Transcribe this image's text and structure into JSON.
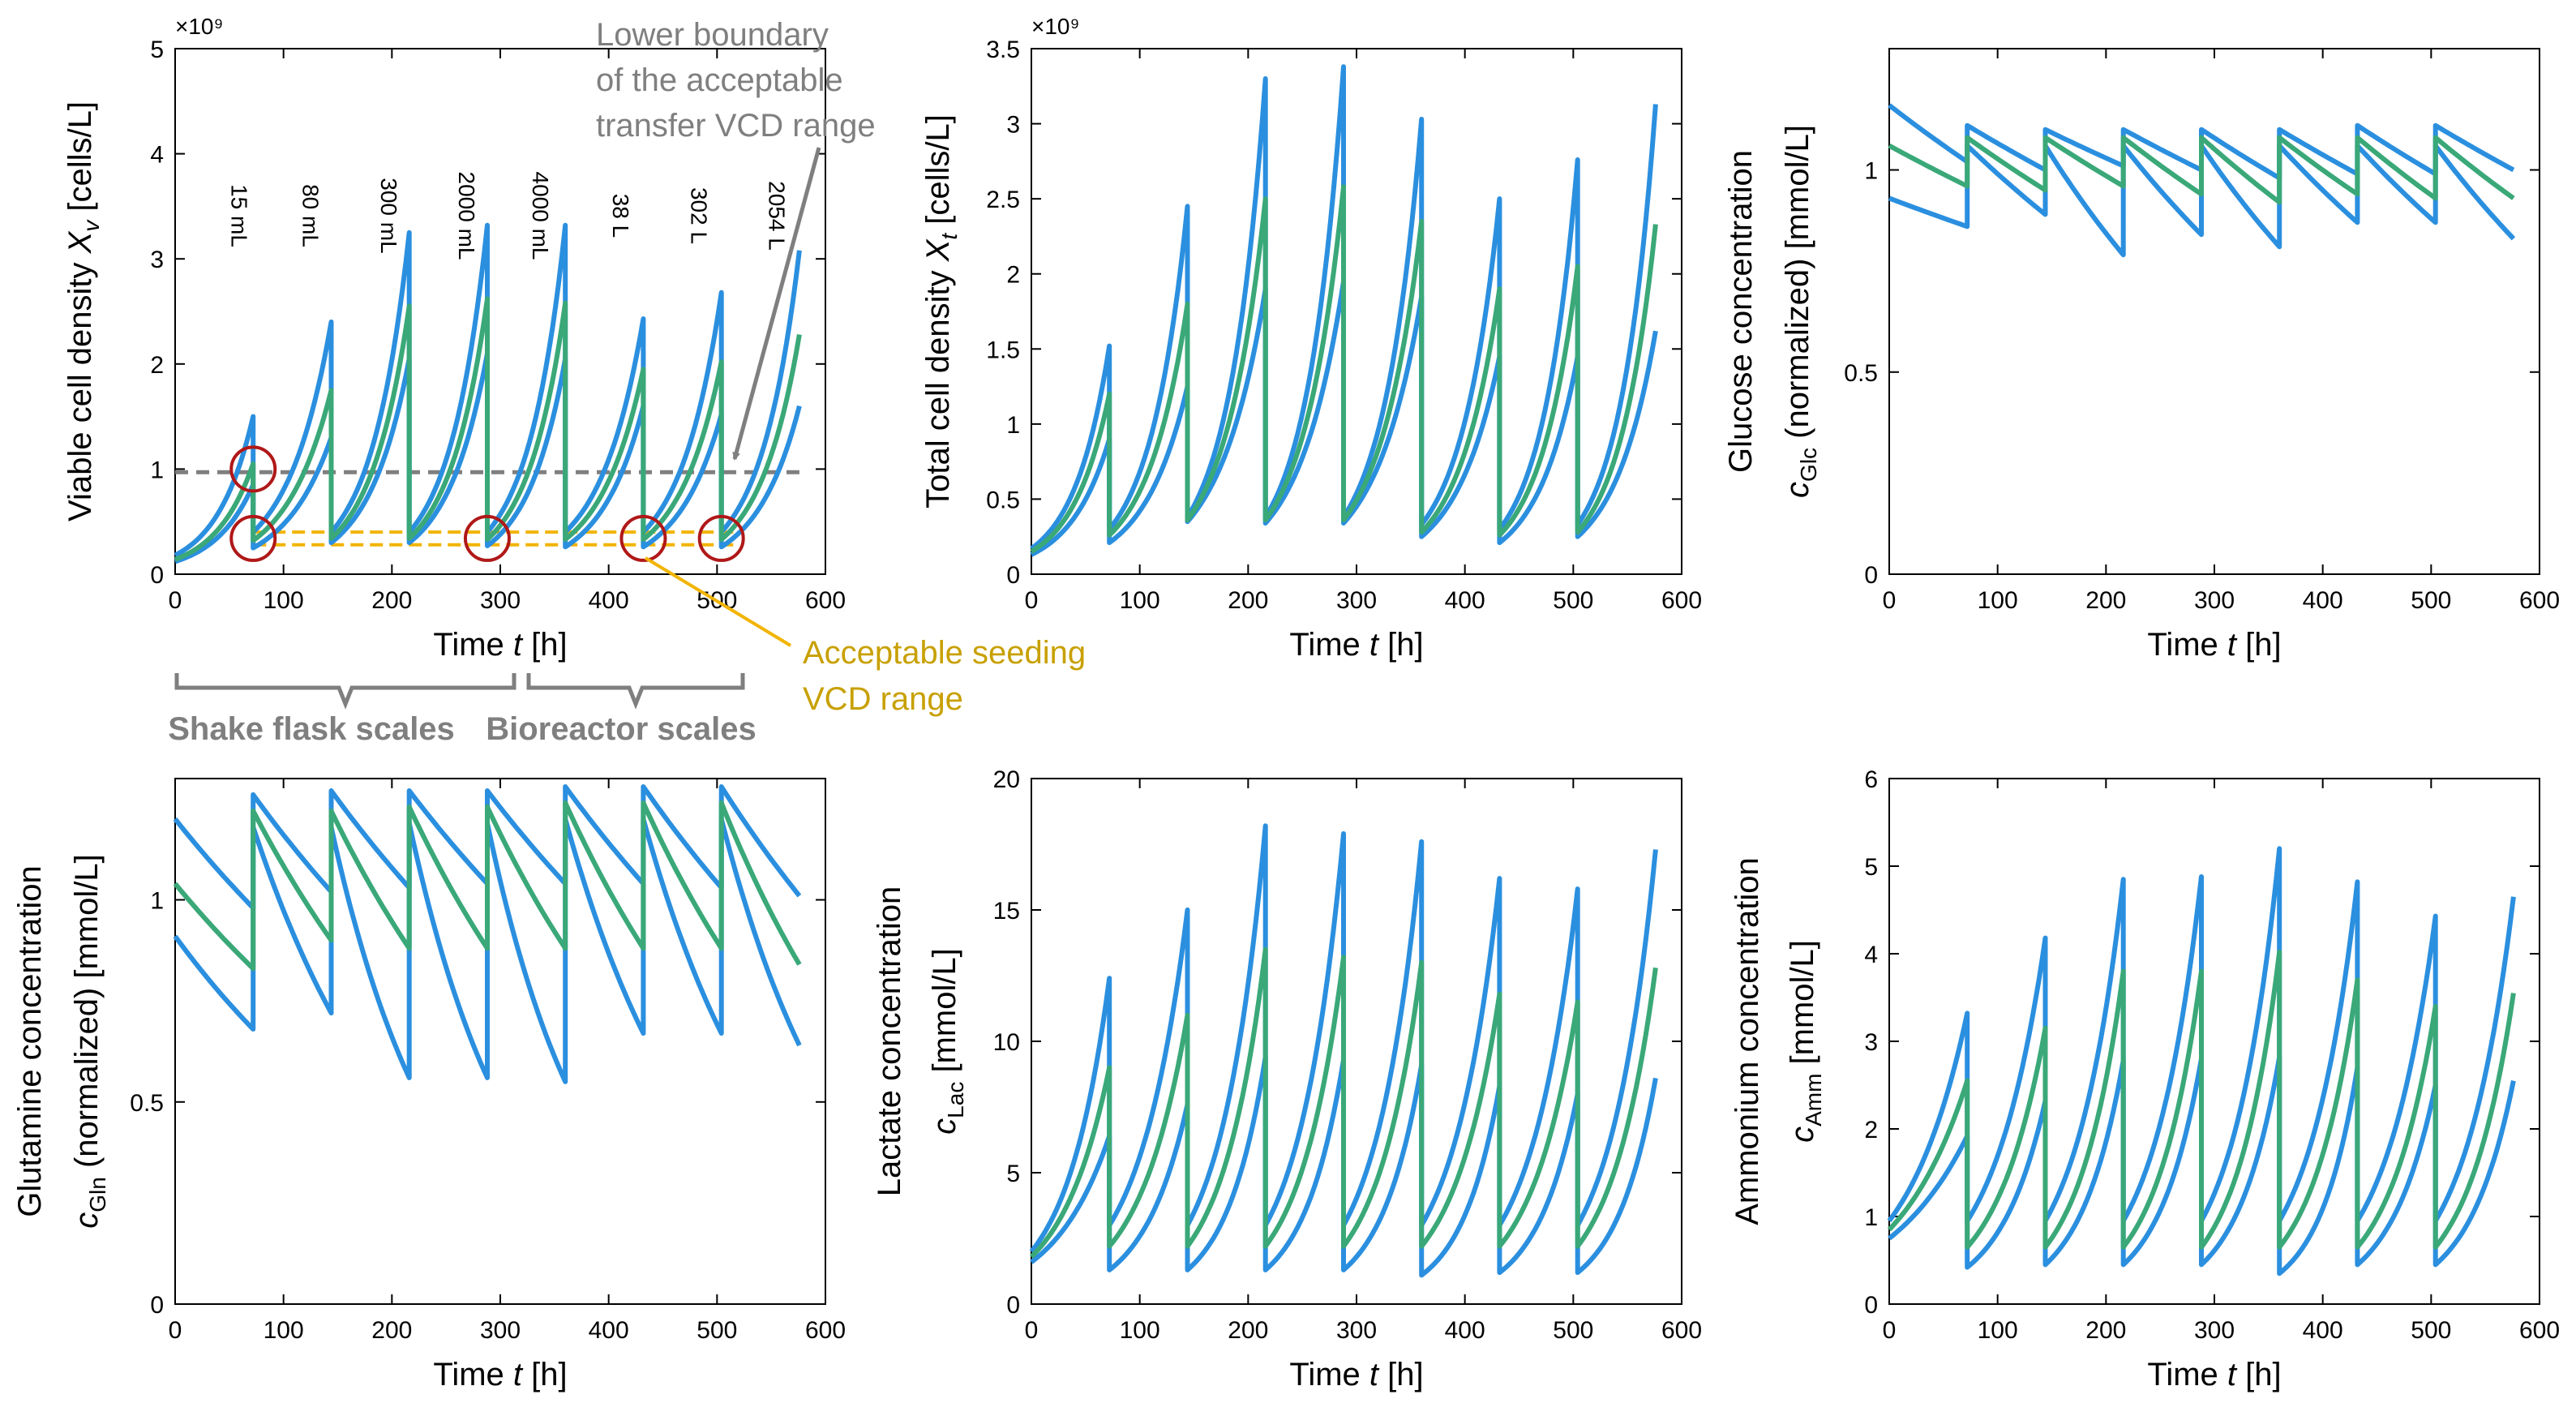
{
  "colors": {
    "band": "#2b8fdf",
    "mean": "#3aa878",
    "frame": "#000000",
    "threshold": "#7f7f7f",
    "seeding": "#f2b400",
    "seeding_text": "#c8a000",
    "circle": "#b01818",
    "annotation": "#7f7f7f"
  },
  "time_label": "Time",
  "time_var": "t",
  "time_unit": "[h]",
  "chart_data": [
    {
      "id": "vcd",
      "type": "line",
      "title": "",
      "ylabel": "Viable cell density",
      "ylabel_var": "X",
      "ylabel_sub": "v",
      "ylabel_unit": "[cells/L]",
      "xlim": [
        0,
        600
      ],
      "ylim": [
        0,
        5
      ],
      "xticks": [
        0,
        100,
        200,
        300,
        400,
        500,
        600
      ],
      "yticks": [
        0,
        1,
        2,
        3,
        4,
        5
      ],
      "ytick_labels": [
        "0",
        "1",
        "2",
        "3",
        "4",
        "5"
      ],
      "exponent": "×10⁹",
      "stage_duration_h": 72,
      "series": [
        {
          "name": "upper",
          "starts": [
            0.18,
            0.4,
            0.4,
            0.4,
            0.4,
            0.4,
            0.4,
            0.4
          ],
          "ends": [
            1.5,
            2.4,
            3.25,
            3.32,
            3.32,
            2.43,
            2.68,
            3.08
          ]
        },
        {
          "name": "mean",
          "starts": [
            0.14,
            0.32,
            0.34,
            0.34,
            0.33,
            0.33,
            0.33,
            0.33
          ],
          "ends": [
            1.05,
            1.75,
            2.55,
            2.62,
            2.58,
            1.95,
            2.02,
            2.28
          ]
        },
        {
          "name": "lower",
          "starts": [
            0.12,
            0.25,
            0.3,
            0.3,
            0.27,
            0.26,
            0.26,
            0.26
          ],
          "ends": [
            0.85,
            1.3,
            2.05,
            2.1,
            2.05,
            1.6,
            1.52,
            1.6
          ]
        }
      ],
      "threshold": 0.97,
      "seeding_range": [
        0.28,
        0.4
      ],
      "scale_labels": [
        "15 mL",
        "80 mL",
        "300 mL",
        "2000 mL",
        "4000 mL",
        "38 L",
        "302 L",
        "2054 L"
      ],
      "circle_times": [
        72,
        288,
        432,
        504
      ]
    },
    {
      "id": "tcd",
      "type": "line",
      "title": "",
      "ylabel": "Total cell density",
      "ylabel_var": "X",
      "ylabel_sub": "t",
      "ylabel_unit": "[cells/L]",
      "xlim": [
        0,
        600
      ],
      "ylim": [
        0,
        3.5
      ],
      "xticks": [
        0,
        100,
        200,
        300,
        400,
        500,
        600
      ],
      "yticks": [
        0,
        0.5,
        1,
        1.5,
        2,
        2.5,
        3,
        3.5
      ],
      "ytick_labels": [
        "0",
        "0.5",
        "1",
        "1.5",
        "2",
        "2.5",
        "3",
        "3.5"
      ],
      "exponent": "×10⁹",
      "stage_duration_h": 72,
      "series": [
        {
          "name": "upper",
          "starts": [
            0.17,
            0.3,
            0.38,
            0.38,
            0.38,
            0.33,
            0.3,
            0.33
          ],
          "ends": [
            1.52,
            2.45,
            3.3,
            3.38,
            3.03,
            2.5,
            2.76,
            3.13
          ]
        },
        {
          "name": "mean",
          "starts": [
            0.15,
            0.26,
            0.36,
            0.36,
            0.36,
            0.28,
            0.26,
            0.28
          ],
          "ends": [
            1.2,
            1.8,
            2.5,
            2.58,
            2.35,
            1.9,
            2.05,
            2.33
          ]
        },
        {
          "name": "lower",
          "starts": [
            0.13,
            0.21,
            0.35,
            0.34,
            0.34,
            0.25,
            0.21,
            0.25
          ],
          "ends": [
            0.9,
            1.25,
            1.9,
            1.95,
            1.85,
            1.45,
            1.45,
            1.62
          ]
        }
      ]
    },
    {
      "id": "glc",
      "type": "line",
      "title": "",
      "ylabel": "Glucose concentration",
      "ylabel2_var": "c",
      "ylabel2_sub": "Glc",
      "ylabel2": "(normalized) [mmol/L]",
      "xlim": [
        0,
        600
      ],
      "ylim": [
        0,
        1.3
      ],
      "xticks": [
        0,
        100,
        200,
        300,
        400,
        500,
        600
      ],
      "yticks": [
        0,
        0.5,
        1
      ],
      "ytick_labels": [
        "0",
        "0.5",
        "1"
      ],
      "stage_duration_h": 72,
      "series": [
        {
          "name": "upper",
          "starts": [
            1.16,
            1.11,
            1.1,
            1.1,
            1.1,
            1.1,
            1.11,
            1.11
          ],
          "ends": [
            1.02,
            1.0,
            1.01,
            1.0,
            0.98,
            0.99,
            0.99,
            1.0
          ]
        },
        {
          "name": "mean",
          "starts": [
            1.06,
            1.08,
            1.08,
            1.08,
            1.08,
            1.08,
            1.08,
            1.08
          ],
          "ends": [
            0.96,
            0.95,
            0.96,
            0.94,
            0.92,
            0.94,
            0.93,
            0.93
          ]
        },
        {
          "name": "lower",
          "starts": [
            0.93,
            1.06,
            1.06,
            1.06,
            1.06,
            1.06,
            1.06,
            1.06
          ],
          "ends": [
            0.86,
            0.89,
            0.79,
            0.84,
            0.81,
            0.87,
            0.87,
            0.83
          ]
        }
      ]
    },
    {
      "id": "gln",
      "type": "line",
      "title": "",
      "ylabel": "Glutamine concentration",
      "ylabel2_var": "c",
      "ylabel2_sub": "Gln",
      "ylabel2": "(normalized) [mmol/L]",
      "xlim": [
        0,
        600
      ],
      "ylim": [
        0,
        1.3
      ],
      "xticks": [
        0,
        100,
        200,
        300,
        400,
        500,
        600
      ],
      "yticks": [
        0,
        0.5,
        1
      ],
      "ytick_labels": [
        "0",
        "0.5",
        "1"
      ],
      "stage_duration_h": 72,
      "series": [
        {
          "name": "upper",
          "starts": [
            1.2,
            1.26,
            1.27,
            1.27,
            1.27,
            1.28,
            1.28,
            1.28
          ],
          "ends": [
            0.98,
            1.02,
            1.03,
            1.04,
            1.04,
            1.04,
            1.03,
            1.01
          ]
        },
        {
          "name": "mean",
          "starts": [
            1.04,
            1.22,
            1.22,
            1.23,
            1.23,
            1.24,
            1.24,
            1.24
          ],
          "ends": [
            0.83,
            0.9,
            0.88,
            0.88,
            0.88,
            0.88,
            0.88,
            0.84
          ]
        },
        {
          "name": "lower",
          "starts": [
            0.91,
            1.18,
            1.18,
            1.19,
            1.19,
            1.2,
            1.2,
            1.2
          ],
          "ends": [
            0.68,
            0.72,
            0.56,
            0.56,
            0.55,
            0.67,
            0.67,
            0.64
          ]
        }
      ]
    },
    {
      "id": "lac",
      "type": "line",
      "title": "",
      "ylabel": "Lactate concentration",
      "ylabel2_var": "c",
      "ylabel2_sub": "Lac",
      "ylabel2": "[mmol/L]",
      "xlim": [
        0,
        600
      ],
      "ylim": [
        0,
        20
      ],
      "xticks": [
        0,
        100,
        200,
        300,
        400,
        500,
        600
      ],
      "yticks": [
        0,
        5,
        10,
        15,
        20
      ],
      "ytick_labels": [
        "0",
        "5",
        "10",
        "15",
        "20"
      ],
      "stage_duration_h": 72,
      "series": [
        {
          "name": "upper",
          "starts": [
            2.0,
            3.0,
            3.0,
            3.0,
            3.0,
            3.0,
            3.0,
            3.0
          ],
          "ends": [
            12.4,
            15.0,
            18.2,
            17.9,
            17.6,
            16.2,
            15.8,
            17.3
          ]
        },
        {
          "name": "mean",
          "starts": [
            1.8,
            2.2,
            2.2,
            2.2,
            2.2,
            2.2,
            2.2,
            2.2
          ],
          "ends": [
            9.0,
            11.0,
            13.5,
            13.2,
            13.0,
            11.8,
            11.5,
            12.8
          ]
        },
        {
          "name": "lower",
          "starts": [
            1.6,
            1.3,
            1.3,
            1.3,
            1.3,
            1.1,
            1.2,
            1.2
          ],
          "ends": [
            6.4,
            7.6,
            9.4,
            9.3,
            9.1,
            8.3,
            8.0,
            8.6
          ]
        }
      ]
    },
    {
      "id": "amm",
      "type": "line",
      "title": "",
      "ylabel": "Ammonium concentration",
      "ylabel2_var": "c",
      "ylabel2_sub": "Amm",
      "ylabel2": "[mmol/L]",
      "xlim": [
        0,
        600
      ],
      "ylim": [
        0,
        6
      ],
      "xticks": [
        0,
        100,
        200,
        300,
        400,
        500,
        600
      ],
      "yticks": [
        0,
        1,
        2,
        3,
        4,
        5,
        6
      ],
      "ytick_labels": [
        "0",
        "1",
        "2",
        "3",
        "4",
        "5",
        "6"
      ],
      "stage_duration_h": 72,
      "series": [
        {
          "name": "upper",
          "starts": [
            0.95,
            0.95,
            0.95,
            0.95,
            0.95,
            0.95,
            0.95,
            0.95
          ],
          "ends": [
            3.32,
            4.18,
            4.85,
            4.88,
            5.2,
            4.82,
            4.43,
            4.65
          ]
        },
        {
          "name": "mean",
          "starts": [
            0.85,
            0.65,
            0.65,
            0.65,
            0.65,
            0.65,
            0.65,
            0.65
          ],
          "ends": [
            2.55,
            3.15,
            3.8,
            3.8,
            4.02,
            3.7,
            3.4,
            3.55
          ]
        },
        {
          "name": "lower",
          "starts": [
            0.75,
            0.42,
            0.45,
            0.45,
            0.45,
            0.35,
            0.45,
            0.45
          ],
          "ends": [
            1.92,
            2.32,
            2.78,
            2.8,
            2.82,
            2.7,
            2.5,
            2.55
          ]
        }
      ]
    }
  ],
  "annotations": {
    "boundary_line1": "Lower boundary",
    "boundary_line2": "of the acceptable",
    "boundary_line3": "transfer VCD range",
    "seeding_line1": "Acceptable seeding",
    "seeding_line2": "VCD range",
    "shake_flask": "Shake flask scales",
    "bioreactor": "Bioreactor scales"
  }
}
